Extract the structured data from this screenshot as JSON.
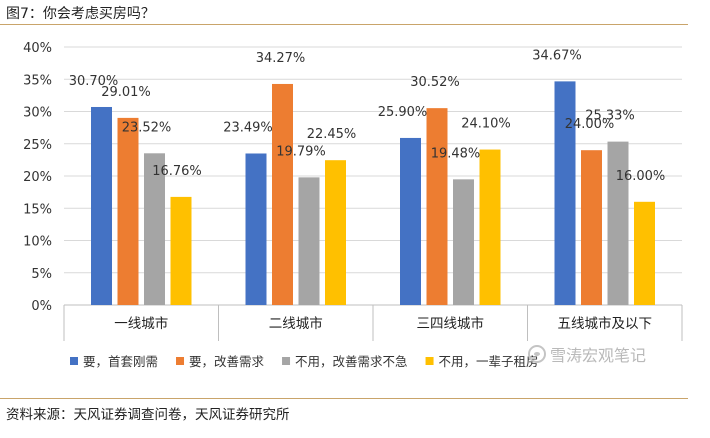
{
  "figure": {
    "title": "图7：你会考虑买房吗？",
    "source": "资料来源：天风证券调查问卷，天风证券研究所",
    "watermark": "雪涛宏观笔记"
  },
  "chart_data": {
    "type": "bar",
    "title": "图7：你会考虑买房吗？",
    "categories": [
      "一线城市",
      "二线城市",
      "三四线城市",
      "五线城市及以下"
    ],
    "yticks": [
      "0%",
      "5%",
      "10%",
      "15%",
      "20%",
      "25%",
      "30%",
      "35%",
      "40%"
    ],
    "ylim": [
      0,
      40
    ],
    "xlabel": "",
    "ylabel": "",
    "grid": true,
    "legend_position": "bottom",
    "series": [
      {
        "name": "要，首套刚需",
        "color": "#4472c4",
        "values": [
          30.7,
          23.49,
          25.9,
          34.67
        ],
        "labels": [
          "30.70%",
          "23.49%",
          "25.90%",
          "34.67%"
        ]
      },
      {
        "name": "要，改善需求",
        "color": "#ed7d31",
        "values": [
          29.01,
          34.27,
          30.52,
          24.0
        ],
        "labels": [
          "29.01%",
          "34.27%",
          "30.52%",
          "24.00%"
        ]
      },
      {
        "name": "不用，改善需求不急",
        "color": "#a5a5a5",
        "values": [
          23.52,
          19.79,
          19.48,
          25.33
        ],
        "labels": [
          "23.52%",
          "19.79%",
          "19.48%",
          "25.33%"
        ]
      },
      {
        "name": "不用，一辈子租房",
        "color": "#ffc000",
        "values": [
          16.76,
          22.45,
          24.1,
          16.0
        ],
        "labels": [
          "16.76%",
          "22.45%",
          "24.10%",
          "16.00%"
        ]
      }
    ]
  }
}
